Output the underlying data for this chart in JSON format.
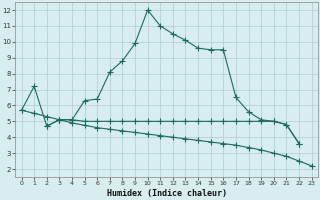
{
  "xlabel": "Humidex (Indice chaleur)",
  "bg_color": "#d8eeee",
  "grid_color": "#b0cccc",
  "line_color": "#1a6b5a",
  "xlim": [
    -0.5,
    23.5
  ],
  "ylim": [
    1.5,
    12.5
  ],
  "yticks": [
    2,
    3,
    4,
    5,
    6,
    7,
    8,
    9,
    10,
    11,
    12
  ],
  "xticks": [
    0,
    1,
    2,
    3,
    4,
    5,
    6,
    7,
    8,
    9,
    10,
    11,
    12,
    13,
    14,
    15,
    16,
    17,
    18,
    19,
    20,
    21,
    22,
    23
  ],
  "curve_main_x": [
    0,
    1,
    2,
    3,
    4,
    5,
    6,
    7,
    8,
    9,
    10,
    11,
    12,
    13,
    14,
    15,
    16,
    17,
    18,
    19,
    20,
    21,
    22
  ],
  "curve_main_y": [
    5.7,
    7.2,
    4.7,
    5.1,
    5.1,
    6.3,
    6.4,
    8.1,
    8.8,
    9.9,
    12.0,
    11.0,
    10.5,
    10.1,
    9.6,
    9.5,
    9.5,
    6.5,
    5.6,
    5.1,
    5.0,
    4.8,
    3.6
  ],
  "flat_x": [
    2,
    3,
    4,
    5,
    6,
    7,
    8,
    9,
    10,
    11,
    12,
    13,
    14,
    15,
    16,
    17,
    18,
    19,
    20,
    21,
    22
  ],
  "flat_y": [
    4.7,
    5.1,
    5.1,
    5.0,
    5.0,
    5.0,
    5.0,
    5.0,
    5.0,
    5.0,
    5.0,
    5.0,
    5.0,
    5.0,
    5.0,
    5.0,
    5.0,
    5.0,
    5.0,
    4.8,
    3.6
  ],
  "diag_x": [
    0,
    1,
    2,
    3,
    4,
    5,
    6,
    7,
    8,
    9,
    10,
    11,
    12,
    13,
    14,
    15,
    16,
    17,
    18,
    19,
    20,
    21,
    22,
    23
  ],
  "diag_y": [
    5.7,
    5.5,
    5.3,
    5.1,
    4.9,
    4.75,
    4.6,
    4.5,
    4.4,
    4.3,
    4.2,
    4.1,
    4.0,
    3.9,
    3.8,
    3.7,
    3.6,
    3.5,
    3.35,
    3.2,
    3.0,
    2.8,
    2.5,
    2.2
  ]
}
